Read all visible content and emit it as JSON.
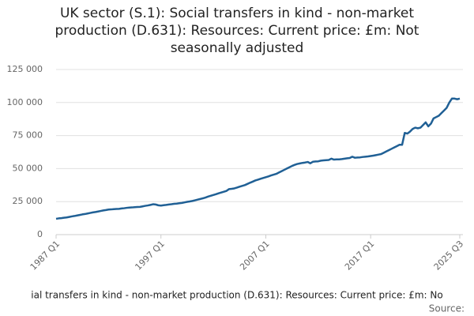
{
  "chart_data": {
    "type": "line",
    "title": "UK sector (S.1): Social transfers in kind - non-market production (D.631): Resources: Current price: £m: Not seasonally adjusted",
    "x_label": "ial transfers in kind - non-market production (D.631): Resources: Current price: £m: No",
    "source": "Source:",
    "categories": [
      "1987 Q1",
      null,
      null,
      null,
      null,
      null,
      null,
      null,
      null,
      null,
      null,
      null,
      null,
      null,
      null,
      null,
      null,
      null,
      null,
      null,
      null,
      null,
      null,
      null,
      null,
      null,
      null,
      null,
      null,
      null,
      null,
      null,
      null,
      null,
      null,
      null,
      null,
      null,
      null,
      null,
      "1997 Q1",
      null,
      null,
      null,
      null,
      null,
      null,
      null,
      null,
      null,
      null,
      null,
      null,
      null,
      null,
      null,
      null,
      null,
      null,
      null,
      null,
      null,
      null,
      null,
      null,
      null,
      null,
      null,
      null,
      null,
      null,
      null,
      null,
      null,
      null,
      null,
      null,
      null,
      null,
      null,
      "2007 Q1",
      null,
      null,
      null,
      null,
      null,
      null,
      null,
      null,
      null,
      null,
      null,
      null,
      null,
      null,
      null,
      null,
      null,
      null,
      null,
      null,
      null,
      null,
      null,
      null,
      null,
      null,
      null,
      null,
      null,
      null,
      null,
      null,
      null,
      null,
      null,
      null,
      null,
      null,
      null,
      "2017 Q1",
      null,
      null,
      null,
      null,
      null,
      null,
      null,
      null,
      null,
      null,
      null,
      null,
      null,
      null,
      null,
      null,
      null,
      null,
      null,
      null,
      null,
      null,
      null,
      null,
      null,
      null,
      null,
      null,
      null,
      null,
      null,
      null,
      null,
      "2025 Q3"
    ],
    "series": [
      {
        "name": "UK sector (S.1): Social transfers in kind - non-market production (D.631)",
        "color": "#206095",
        "values": [
          12000,
          12300,
          12500,
          12800,
          13000,
          13400,
          13800,
          14100,
          14500,
          14900,
          15300,
          15600,
          16000,
          16400,
          16800,
          17100,
          17500,
          17900,
          18300,
          18600,
          19000,
          19100,
          19300,
          19400,
          19500,
          19800,
          20000,
          20300,
          20500,
          20600,
          20800,
          20900,
          21000,
          21400,
          21800,
          22100,
          22500,
          23000,
          22800,
          22200,
          22000,
          22300,
          22500,
          22800,
          23000,
          23300,
          23500,
          23800,
          24000,
          24400,
          24800,
          25100,
          25500,
          26000,
          26500,
          27000,
          27500,
          28100,
          28800,
          29400,
          30000,
          30600,
          31300,
          31900,
          32500,
          33100,
          34500,
          34700,
          35000,
          35600,
          36300,
          36900,
          37500,
          38400,
          39300,
          40100,
          41000,
          41600,
          42300,
          42900,
          43500,
          44100,
          44800,
          45400,
          46000,
          47000,
          48000,
          49000,
          50000,
          51000,
          52000,
          52800,
          53500,
          53900,
          54300,
          54600,
          55000,
          54000,
          55200,
          55400,
          55500,
          56000,
          56200,
          56400,
          56500,
          57500,
          56800,
          57000,
          57000,
          57200,
          57500,
          57800,
          58000,
          59000,
          58200,
          58400,
          58500,
          58800,
          59000,
          59200,
          59500,
          59800,
          60200,
          60600,
          61000,
          62000,
          63000,
          64000,
          65000,
          66000,
          67000,
          68000,
          68000,
          77000,
          76500,
          78000,
          80000,
          81000,
          80500,
          81000,
          83000,
          85000,
          82000,
          84000,
          88000,
          89000,
          90000,
          92000,
          94000,
          96000,
          100000,
          103000,
          103000,
          102500,
          103000
        ]
      }
    ],
    "ylim": [
      0,
      125000
    ],
    "yticks": [
      0,
      {
        "value": 25000,
        "label": "25 000"
      },
      {
        "value": 50000,
        "label": "50 000"
      },
      {
        "value": 75000,
        "label": "75 000"
      },
      {
        "value": 100000,
        "label": "100 000"
      },
      {
        "value": 125000,
        "label": "125 000"
      }
    ],
    "grid": true
  }
}
